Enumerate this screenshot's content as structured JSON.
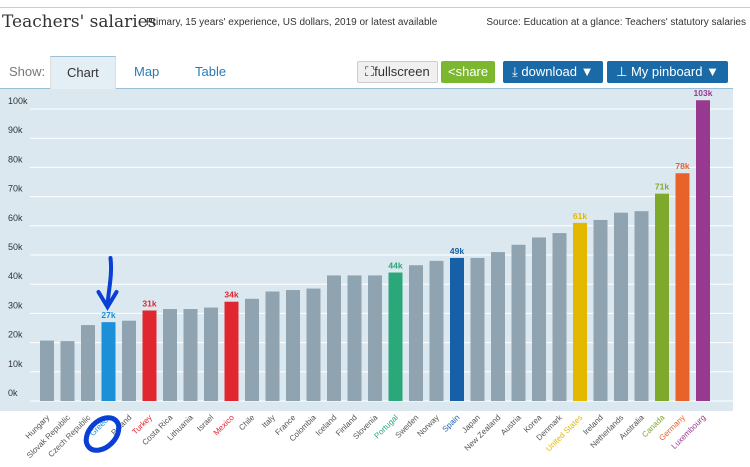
{
  "header": {
    "title": "Teachers' salaries",
    "subtitle": "Primary, 15 years' experience, US dollars, 2019 or latest available",
    "source": "Source: Education at a glance: Teachers' statutory salaries"
  },
  "toolbar": {
    "show_label": "Show:",
    "tabs": [
      {
        "label": "Chart",
        "active": true
      },
      {
        "label": "Map"
      },
      {
        "label": "Table"
      }
    ],
    "fullscreen": "fullscreen",
    "share": "share",
    "download": "download ▼",
    "pinboard": "My pinboard ▼"
  },
  "chart_data": {
    "type": "bar",
    "ylim": [
      0,
      100
    ],
    "yticks": [
      "0k",
      "10k",
      "20k",
      "30k",
      "40k",
      "50k",
      "60k",
      "70k",
      "80k",
      "90k",
      "100k"
    ],
    "grid": true,
    "categories": [
      "Hungary",
      "Slovak Republic",
      "Czech Republic",
      "Greece",
      "Poland",
      "Turkey",
      "Costa Rica",
      "Lithuania",
      "Israel",
      "Mexico",
      "Chile",
      "Italy",
      "France",
      "Colombia",
      "Iceland",
      "Finland",
      "Slovenia",
      "Portugal",
      "Sweden",
      "Norway",
      "Spain",
      "Japan",
      "New Zealand",
      "Austria",
      "Korea",
      "Denmark",
      "United States",
      "Ireland",
      "Netherlands",
      "Australia",
      "Canada",
      "Germany",
      "Luxembourg"
    ],
    "values": [
      20.7,
      20.5,
      26,
      27,
      27.5,
      31,
      31.5,
      31.5,
      32,
      34,
      35,
      37.5,
      38,
      38.5,
      43,
      43,
      43,
      44,
      46.5,
      48,
      49,
      49,
      51,
      53.5,
      56,
      57.5,
      61,
      62,
      64.5,
      65,
      71,
      78,
      103
    ],
    "units": "k USD",
    "default_color": "#8fa3b0",
    "highlights": {
      "Greece": {
        "color": "#1b8fd8",
        "label": "27k"
      },
      "Turkey": {
        "color": "#e0262e",
        "label": "31k"
      },
      "Mexico": {
        "color": "#e0262e",
        "label": "34k"
      },
      "Portugal": {
        "color": "#2aa87a",
        "label": "44k"
      },
      "Spain": {
        "color": "#1760a8",
        "label": "49k"
      },
      "United States": {
        "color": "#e5b800",
        "label": "61k"
      },
      "Canada": {
        "color": "#7fa92b",
        "label": "71k"
      },
      "Germany": {
        "color": "#e8632a",
        "label": "78k"
      },
      "Luxembourg": {
        "color": "#973a8f",
        "label": "103k"
      }
    }
  }
}
